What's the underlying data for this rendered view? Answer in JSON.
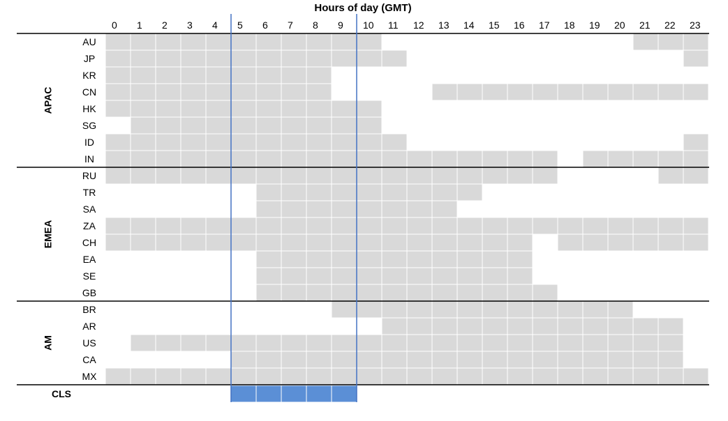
{
  "chart_data": {
    "type": "heatmap",
    "title": "Hours of day (GMT)",
    "hours": [
      "0",
      "1",
      "2",
      "3",
      "4",
      "5",
      "6",
      "7",
      "8",
      "9",
      "10",
      "11",
      "12",
      "13",
      "14",
      "15",
      "16",
      "17",
      "18",
      "19",
      "20",
      "21",
      "22",
      "23"
    ],
    "groups": [
      {
        "name": "APAC",
        "rows": [
          {
            "label": "AU",
            "hours": [
              0,
              1,
              2,
              3,
              4,
              5,
              6,
              7,
              8,
              9,
              10,
              21,
              22,
              23
            ]
          },
          {
            "label": "JP",
            "hours": [
              0,
              1,
              2,
              3,
              4,
              5,
              6,
              7,
              8,
              9,
              10,
              11,
              23
            ]
          },
          {
            "label": "KR",
            "hours": [
              0,
              1,
              2,
              3,
              4,
              5,
              6,
              7,
              8
            ]
          },
          {
            "label": "CN",
            "hours": [
              0,
              1,
              2,
              3,
              4,
              5,
              6,
              7,
              8,
              13,
              14,
              15,
              16,
              17,
              18,
              19,
              20,
              21,
              22,
              23
            ]
          },
          {
            "label": "HK",
            "hours": [
              0,
              1,
              2,
              3,
              4,
              5,
              6,
              7,
              8,
              9,
              10
            ]
          },
          {
            "label": "SG",
            "hours": [
              1,
              2,
              3,
              4,
              5,
              6,
              7,
              8,
              9,
              10
            ]
          },
          {
            "label": "ID",
            "hours": [
              0,
              1,
              2,
              3,
              4,
              5,
              6,
              7,
              8,
              9,
              10,
              11,
              23
            ]
          },
          {
            "label": "IN",
            "hours": [
              0,
              1,
              2,
              3,
              4,
              5,
              6,
              7,
              8,
              9,
              10,
              11,
              12,
              13,
              14,
              15,
              16,
              17,
              19,
              20,
              21,
              22,
              23
            ]
          }
        ]
      },
      {
        "name": "EMEA",
        "rows": [
          {
            "label": "RU",
            "hours": [
              0,
              1,
              2,
              3,
              4,
              5,
              6,
              7,
              8,
              9,
              10,
              11,
              12,
              13,
              14,
              15,
              16,
              17,
              22,
              23
            ]
          },
          {
            "label": "TR",
            "hours": [
              6,
              7,
              8,
              9,
              10,
              11,
              12,
              13,
              14
            ]
          },
          {
            "label": "SA",
            "hours": [
              6,
              7,
              8,
              9,
              10,
              11,
              12,
              13
            ]
          },
          {
            "label": "ZA",
            "hours": [
              0,
              1,
              2,
              3,
              4,
              5,
              6,
              7,
              8,
              9,
              10,
              11,
              12,
              13,
              14,
              15,
              16,
              17,
              18,
              19,
              20,
              21,
              22,
              23
            ]
          },
          {
            "label": "CH",
            "hours": [
              0,
              1,
              2,
              3,
              4,
              5,
              6,
              7,
              8,
              9,
              10,
              11,
              12,
              13,
              14,
              15,
              16,
              18,
              19,
              20,
              21,
              22,
              23
            ]
          },
          {
            "label": "EA",
            "hours": [
              6,
              7,
              8,
              9,
              10,
              11,
              12,
              13,
              14,
              15,
              16
            ]
          },
          {
            "label": "SE",
            "hours": [
              6,
              7,
              8,
              9,
              10,
              11,
              12,
              13,
              14,
              15,
              16
            ]
          },
          {
            "label": "GB",
            "hours": [
              6,
              7,
              8,
              9,
              10,
              11,
              12,
              13,
              14,
              15,
              16,
              17
            ]
          }
        ]
      },
      {
        "name": "AM",
        "rows": [
          {
            "label": "BR",
            "hours": [
              9,
              10,
              11,
              12,
              13,
              14,
              15,
              16,
              17,
              18,
              19,
              20
            ]
          },
          {
            "label": "AR",
            "hours": [
              11,
              12,
              13,
              14,
              15,
              16,
              17,
              18,
              19,
              20,
              21,
              22
            ]
          },
          {
            "label": "US",
            "hours": [
              1,
              2,
              3,
              4,
              5,
              6,
              7,
              8,
              9,
              10,
              11,
              12,
              13,
              14,
              15,
              16,
              17,
              18,
              19,
              20,
              21,
              22
            ]
          },
          {
            "label": "CA",
            "hours": [
              5,
              6,
              7,
              8,
              9,
              10,
              11,
              12,
              13,
              14,
              15,
              16,
              17,
              18,
              19,
              20,
              21,
              22
            ]
          },
          {
            "label": "MX",
            "hours": [
              0,
              1,
              2,
              3,
              4,
              5,
              6,
              7,
              8,
              9,
              10,
              11,
              12,
              13,
              14,
              15,
              16,
              17,
              18,
              19,
              20,
              21,
              22,
              23
            ]
          }
        ]
      }
    ],
    "summary_row": {
      "label": "CLS",
      "hours": [
        5,
        6,
        7,
        8,
        9
      ]
    },
    "highlight_window": {
      "start_hour": 5,
      "end_hour": 10
    },
    "colors": {
      "active": "#d9d9d9",
      "highlight": "#5b8fd6",
      "window_line": "#4472c4",
      "gridline": "#ffffff",
      "separator": "#000000"
    }
  }
}
